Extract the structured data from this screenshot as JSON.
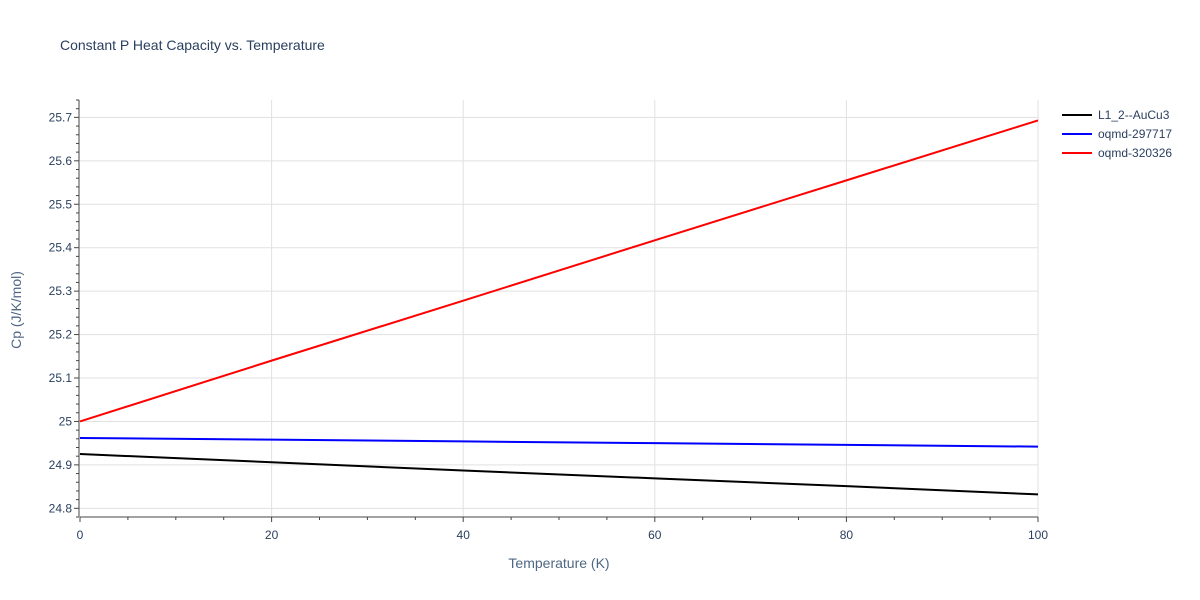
{
  "chart_data": {
    "type": "line",
    "title": "Constant P Heat Capacity vs. Temperature",
    "xlabel": "Temperature (K)",
    "ylabel": "Cp (J/K/mol)",
    "xlim": [
      0,
      100
    ],
    "ylim": [
      24.78,
      25.74
    ],
    "x_ticks": [
      0,
      20,
      40,
      60,
      80,
      100
    ],
    "y_ticks": [
      24.8,
      24.9,
      25,
      25.1,
      25.2,
      25.3,
      25.4,
      25.5,
      25.6,
      25.7
    ],
    "x_tick_labels": [
      "0",
      "20",
      "40",
      "60",
      "80",
      "100"
    ],
    "y_tick_labels": [
      "24.8",
      "24.9",
      "25",
      "25.1",
      "25.2",
      "25.3",
      "25.4",
      "25.5",
      "25.6",
      "25.7"
    ],
    "grid": true,
    "legend_position": "top-right",
    "series": [
      {
        "name": "L1_2--AuCu3",
        "color": "#000000",
        "x": [
          0,
          20,
          40,
          60,
          80,
          100
        ],
        "y": [
          24.925,
          24.906,
          24.887,
          24.869,
          24.851,
          24.832
        ]
      },
      {
        "name": "oqmd-297717",
        "color": "#0000ff",
        "x": [
          0,
          20,
          40,
          60,
          80,
          100
        ],
        "y": [
          24.962,
          24.958,
          24.954,
          24.95,
          24.946,
          24.942
        ]
      },
      {
        "name": "oqmd-320326",
        "color": "#ff0000",
        "x": [
          0,
          20,
          40,
          60,
          80,
          100
        ],
        "y": [
          25.0,
          25.14,
          25.278,
          25.417,
          25.555,
          25.693
        ]
      }
    ]
  }
}
